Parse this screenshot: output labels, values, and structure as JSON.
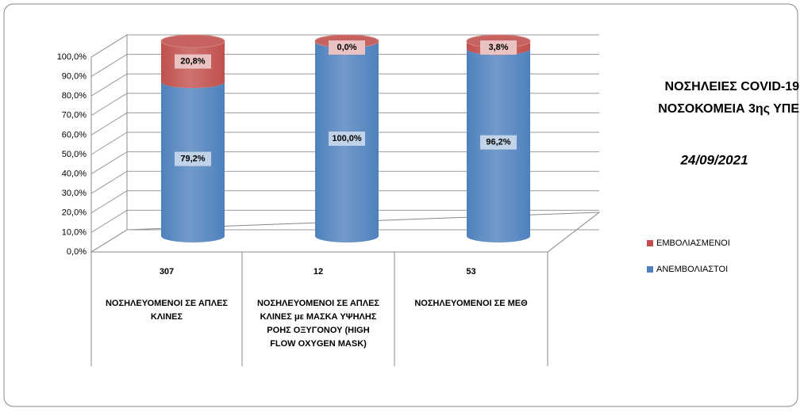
{
  "chart_data": {
    "type": "bar",
    "title": [
      "ΝΟΣΗΛΕΙΕΣ COVID-19",
      "ΝΟΣΟΚΟΜΕΙΑ 3ης ΥΠΕ"
    ],
    "subtitle": "24/09/2021",
    "stacked": true,
    "shape": "cylinder",
    "categories": [
      [
        "ΝΟΣΗΛΕΥΟΜΕΝΟΙ ΣΕ ΑΠΛΕΣ",
        "ΚΛΙΝΕΣ"
      ],
      [
        "ΝΟΣΗΛΕΥΟΜΕΝΟΙ ΣΕ ΑΠΛΕΣ",
        "ΚΛΙΝΕΣ με ΜΑΣΚΑ ΥΨΗΛΗΣ",
        "ΡΟΗΣ ΟΞΥΓΟΝΟΥ (HIGH",
        "FLOW OXYGEN MASK)"
      ],
      [
        "ΝΟΣΗΛΕΥΟΜΕΝΟΙ ΣΕ ΜΕΘ"
      ]
    ],
    "category_counts": [
      307,
      12,
      53
    ],
    "series": [
      {
        "name": "ΑΝΕΜΒΟΛΙΑΣΤΟΙ",
        "color": "#4f81bd",
        "values": [
          79.2,
          100,
          96.2
        ],
        "value_labels": [
          "79,2%",
          "100,0%",
          "96,2%"
        ]
      },
      {
        "name": "ΕΜΒΟΛΙΑΣΜΕΝΟΙ",
        "color": "#c0504d",
        "values": [
          20.8,
          0,
          3.8
        ],
        "value_labels": [
          "20,8%",
          "0,0%",
          "3,8%"
        ]
      }
    ],
    "ylim": [
      0,
      100
    ],
    "yticks": [
      {
        "value": 0,
        "label": "0,0%"
      },
      {
        "value": 10,
        "label": "10,0%"
      },
      {
        "value": 20,
        "label": "20,0%"
      },
      {
        "value": 30,
        "label": "30,0%"
      },
      {
        "value": 40,
        "label": "40,0%"
      },
      {
        "value": 50,
        "label": "50,0%"
      },
      {
        "value": 60,
        "label": "60,0%"
      },
      {
        "value": 70,
        "label": "70,0%"
      },
      {
        "value": 80,
        "label": "80,0%"
      },
      {
        "value": 90,
        "label": "90,0%"
      },
      {
        "value": 100,
        "label": "100,0%"
      }
    ],
    "grid": true,
    "legend": "right"
  }
}
